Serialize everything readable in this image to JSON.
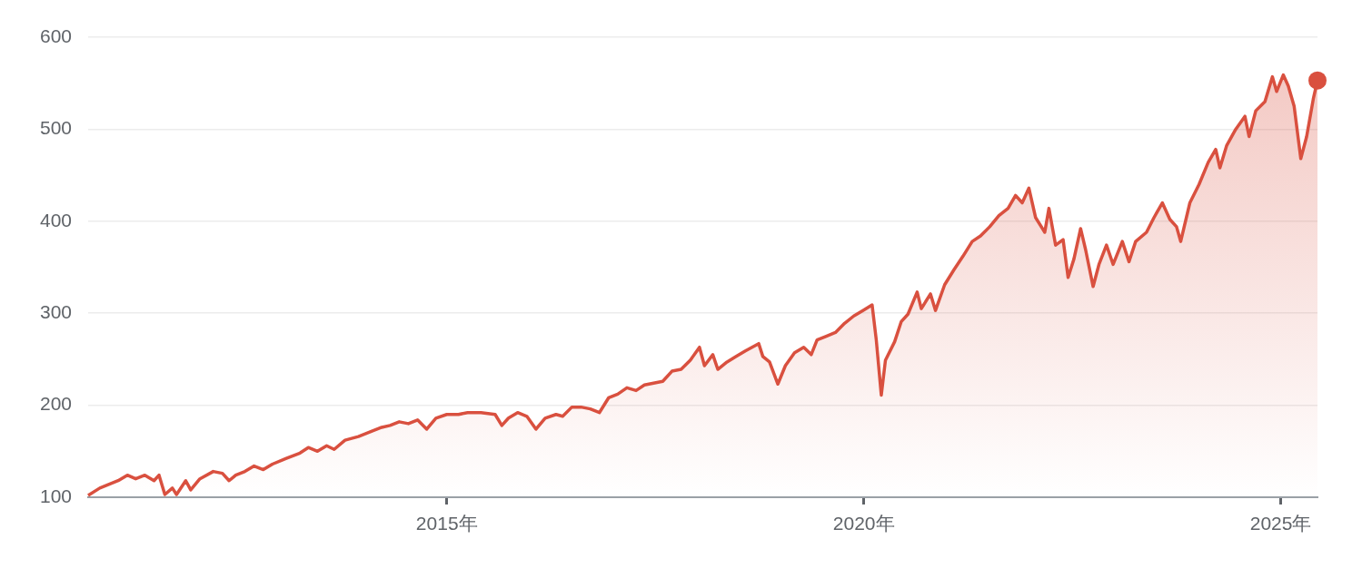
{
  "chart_data": {
    "type": "area",
    "color": "#d9503f",
    "grid": "y",
    "legend": false,
    "xlim": [
      2010.7,
      2025.44
    ],
    "xticks": [
      {
        "value": 2015,
        "label": "2015年"
      },
      {
        "value": 2020,
        "label": "2020年"
      },
      {
        "value": 2025,
        "label": "2025年"
      }
    ],
    "ylim": [
      100,
      600
    ],
    "yticks": [
      100,
      200,
      300,
      400,
      500,
      600
    ],
    "x": [
      2010.7,
      2010.84,
      2011.06,
      2011.17,
      2011.27,
      2011.38,
      2011.49,
      2011.55,
      2011.62,
      2011.71,
      2011.76,
      2011.87,
      2011.93,
      2012.04,
      2012.2,
      2012.31,
      2012.39,
      2012.47,
      2012.58,
      2012.69,
      2012.8,
      2012.91,
      2013.07,
      2013.24,
      2013.34,
      2013.45,
      2013.56,
      2013.65,
      2013.78,
      2013.94,
      2014.11,
      2014.22,
      2014.32,
      2014.43,
      2014.54,
      2014.65,
      2014.76,
      2014.87,
      2015.0,
      2015.14,
      2015.25,
      2015.41,
      2015.58,
      2015.66,
      2015.74,
      2015.85,
      2015.96,
      2016.07,
      2016.18,
      2016.31,
      2016.39,
      2016.5,
      2016.61,
      2016.72,
      2016.83,
      2016.94,
      2017.05,
      2017.16,
      2017.27,
      2017.37,
      2017.48,
      2017.59,
      2017.7,
      2017.81,
      2017.92,
      2018.03,
      2018.09,
      2018.19,
      2018.25,
      2018.36,
      2018.47,
      2018.58,
      2018.74,
      2018.79,
      2018.87,
      2018.97,
      2019.06,
      2019.17,
      2019.28,
      2019.37,
      2019.44,
      2019.55,
      2019.66,
      2019.77,
      2019.88,
      2019.99,
      2020.1,
      2020.15,
      2020.21,
      2020.26,
      2020.37,
      2020.45,
      2020.53,
      2020.64,
      2020.69,
      2020.8,
      2020.86,
      2020.97,
      2021.08,
      2021.19,
      2021.3,
      2021.4,
      2021.51,
      2021.62,
      2021.73,
      2021.82,
      2021.9,
      2021.98,
      2022.06,
      2022.17,
      2022.22,
      2022.3,
      2022.39,
      2022.45,
      2022.52,
      2022.6,
      2022.66,
      2022.75,
      2022.82,
      2022.91,
      2022.99,
      2023.1,
      2023.18,
      2023.26,
      2023.39,
      2023.48,
      2023.58,
      2023.67,
      2023.75,
      2023.8,
      2023.91,
      2024.02,
      2024.13,
      2024.22,
      2024.27,
      2024.35,
      2024.46,
      2024.57,
      2024.62,
      2024.7,
      2024.81,
      2024.9,
      2024.95,
      2025.03,
      2025.09,
      2025.16,
      2025.24,
      2025.31,
      2025.39,
      2025.44
    ],
    "values": [
      102,
      110,
      118,
      124,
      120,
      124,
      118,
      124,
      103,
      110,
      103,
      118,
      108,
      120,
      128,
      126,
      118,
      124,
      128,
      134,
      130,
      136,
      142,
      148,
      154,
      150,
      156,
      152,
      162,
      166,
      172,
      176,
      178,
      182,
      180,
      184,
      174,
      186,
      190,
      190,
      192,
      192,
      190,
      178,
      186,
      192,
      188,
      174,
      186,
      190,
      188,
      198,
      198,
      196,
      192,
      208,
      212,
      219,
      216,
      222,
      224,
      226,
      237,
      239,
      249,
      263,
      243,
      255,
      239,
      247,
      253,
      259,
      267,
      253,
      247,
      223,
      243,
      257,
      263,
      255,
      271,
      275,
      279,
      289,
      297,
      303,
      309,
      271,
      211,
      249,
      269,
      291,
      299,
      323,
      305,
      321,
      303,
      331,
      347,
      362,
      378,
      384,
      394,
      406,
      414,
      428,
      420,
      436,
      404,
      388,
      414,
      374,
      380,
      339,
      359,
      392,
      369,
      329,
      353,
      374,
      353,
      378,
      356,
      378,
      388,
      404,
      420,
      402,
      394,
      378,
      420,
      440,
      464,
      478,
      458,
      482,
      500,
      514,
      492,
      520,
      530,
      557,
      541,
      559,
      547,
      525,
      468,
      492,
      533,
      553
    ]
  }
}
